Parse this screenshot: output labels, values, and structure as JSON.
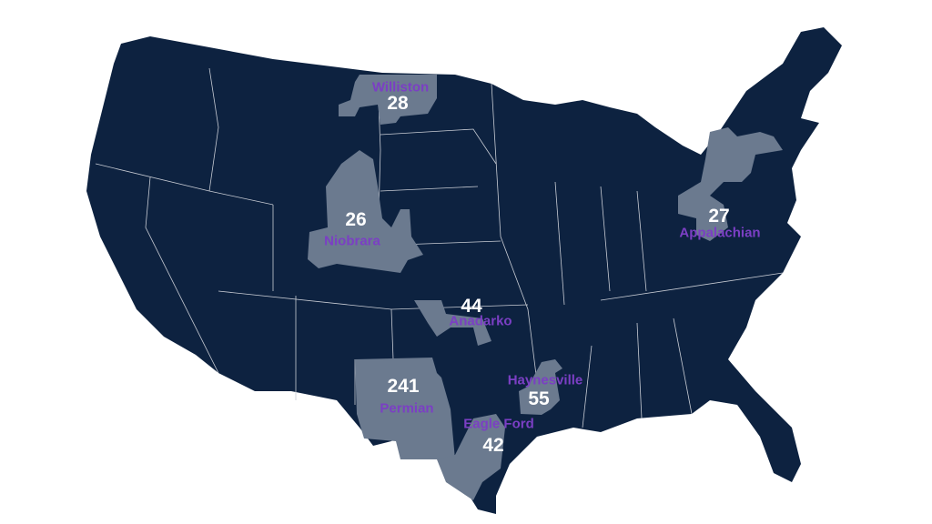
{
  "colors": {
    "land": "#0d2240",
    "borders": "#c8ccd4",
    "region": "#6b7a8f",
    "name_text": "#7b3fc4",
    "value_text": "#ffffff",
    "background": "#ffffff"
  },
  "regions": [
    {
      "name": "Williston",
      "value": "28"
    },
    {
      "name": "Niobrara",
      "value": "26"
    },
    {
      "name": "Anadarko",
      "value": "44"
    },
    {
      "name": "Permian",
      "value": "241"
    },
    {
      "name": "Haynesville",
      "value": "55"
    },
    {
      "name": "Eagle Ford",
      "value": "42"
    },
    {
      "name": "Appalachian",
      "value": "27"
    }
  ]
}
